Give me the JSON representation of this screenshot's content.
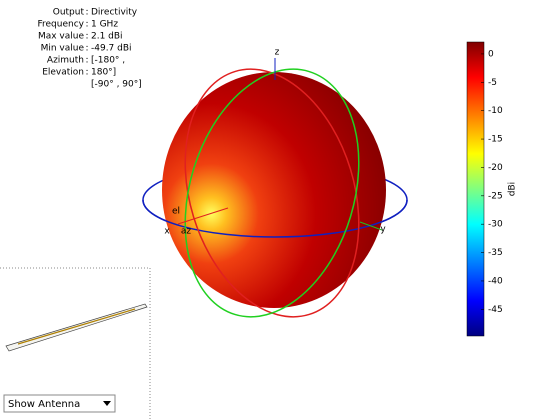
{
  "chart_data": {
    "type": "pattern3d",
    "info": [
      {
        "label": "Output",
        "value": "Directivity"
      },
      {
        "label": "Frequency",
        "value": "1 GHz"
      },
      {
        "label": "Max value",
        "value": "2.1 dBi"
      },
      {
        "label": "Min value",
        "value": "-49.7 dBi"
      },
      {
        "label": "Azimuth",
        "value": "[-180° ,"
      },
      {
        "label": "Elevation",
        "value": "180°]"
      },
      {
        "label": null,
        "value": "[-90° , 90°]"
      }
    ],
    "axis_labels": {
      "x": "x",
      "y": "y",
      "z": "z",
      "az": "az",
      "el": "el"
    },
    "colorbar": {
      "label": "dBi",
      "clim": [
        -49.7,
        2.1
      ],
      "ticks": [
        0,
        -5,
        -10,
        -15,
        -20,
        -25,
        -30,
        -35,
        -40,
        -45
      ]
    },
    "control": "Show Antenna"
  }
}
